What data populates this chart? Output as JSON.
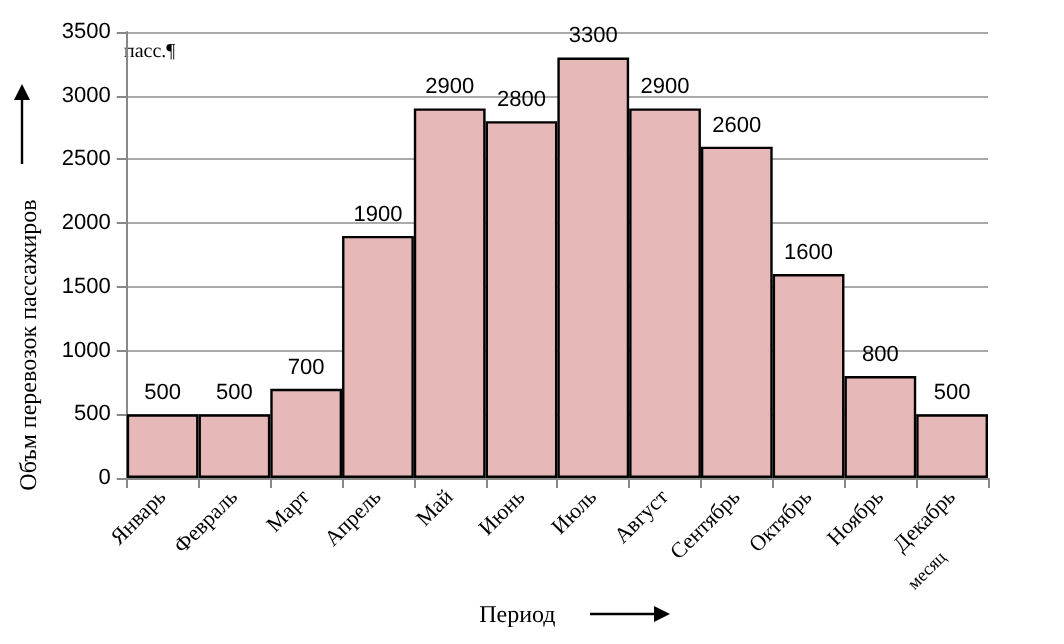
{
  "chart_data": {
    "type": "bar",
    "categories": [
      "Январь",
      "Февраль",
      "Март",
      "Апрель",
      "Май",
      "Июнь",
      "Июль",
      "Август",
      "Сентябрь",
      "Октябрь",
      "Ноябрь",
      "Декабрь"
    ],
    "values": [
      500,
      500,
      700,
      1900,
      2900,
      2800,
      3300,
      2900,
      2600,
      1600,
      800,
      500
    ],
    "color": "#e6b8b7",
    "xlabel": "Период",
    "ylabel": "Объм перевозок пассажиров",
    "annotations": [
      "пасс.¶",
      "месяц"
    ],
    "ylim": [
      0,
      3500
    ],
    "yticks": [
      0,
      500,
      1000,
      1500,
      2000,
      2500,
      3000,
      3500
    ],
    "grid": "y",
    "data_labels": true
  }
}
